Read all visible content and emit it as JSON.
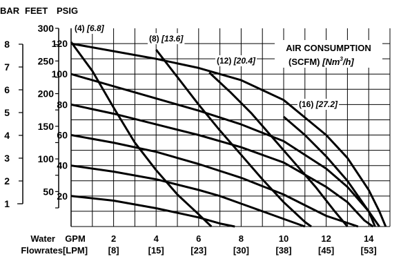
{
  "chart_data": {
    "type": "line",
    "headers": {
      "bar": "BAR",
      "feet": "FEET",
      "psig": "PSIG"
    },
    "legend_title_1": "AIR CONSUMPTION",
    "legend_title_2": "(SCFM) ",
    "legend_title_unit": "[Nm",
    "legend_title_sup": "3",
    "legend_title_end": "/h]",
    "psig_ticks": [
      "20",
      "40",
      "60",
      "80",
      "100",
      "120"
    ],
    "feet_ticks": [
      "50",
      "100",
      "150",
      "200",
      "250",
      "300"
    ],
    "bar_ticks": [
      "1",
      "2",
      "3",
      "4",
      "5",
      "6",
      "7",
      "8"
    ],
    "x_gpm_ticks": [
      "2",
      "4",
      "6",
      "8",
      "10",
      "12",
      "14"
    ],
    "x_lpm_ticks": [
      "[8]",
      "[15]",
      "[23]",
      "[30]",
      "[38]",
      "[45]",
      "[53]"
    ],
    "x_row1_label": "Water",
    "x_row1_unit": "GPM",
    "x_row2_label": "Flowrates",
    "x_row2_unit": "[LPM]",
    "xlim": [
      0,
      15
    ],
    "ylim": [
      0,
      130
    ],
    "grid": true,
    "air_curves": [
      {
        "scfm": "(4)",
        "nm3h": "[6.8]",
        "points": [
          [
            0,
            121
          ],
          [
            1,
            102
          ],
          [
            2,
            78
          ],
          [
            3,
            55
          ],
          [
            4,
            37
          ],
          [
            5,
            21
          ],
          [
            6,
            8
          ],
          [
            6.6,
            0
          ]
        ]
      },
      {
        "scfm": "(8)",
        "nm3h": "[13.6]",
        "points": [
          [
            4,
            116
          ],
          [
            5,
            98
          ],
          [
            6,
            80
          ],
          [
            7,
            63
          ],
          [
            8,
            47
          ],
          [
            9,
            31
          ],
          [
            10,
            16
          ],
          [
            11,
            3
          ],
          [
            11.3,
            0
          ]
        ]
      },
      {
        "scfm": "(12)",
        "nm3h": "[20.4]",
        "points": [
          [
            6.5,
            101
          ],
          [
            7.5,
            88
          ],
          [
            8.5,
            74
          ],
          [
            9.5,
            58
          ],
          [
            10.5,
            42
          ],
          [
            11.5,
            26
          ],
          [
            12.4,
            10
          ],
          [
            13,
            0
          ]
        ]
      },
      {
        "scfm": "(16)",
        "nm3h": "[27.2]",
        "points": [
          [
            10,
            72
          ],
          [
            11,
            60
          ],
          [
            12,
            46
          ],
          [
            13,
            30
          ],
          [
            13.8,
            14
          ],
          [
            14.5,
            0
          ]
        ]
      }
    ],
    "head_curves": [
      {
        "points": [
          [
            0,
            120
          ],
          [
            2,
            115
          ],
          [
            4,
            110
          ],
          [
            6,
            104
          ],
          [
            8,
            96
          ],
          [
            10,
            83
          ],
          [
            12,
            60
          ],
          [
            13,
            45
          ],
          [
            14,
            24
          ],
          [
            14.5,
            10
          ],
          [
            14.8,
            0
          ]
        ]
      },
      {
        "points": [
          [
            0,
            100
          ],
          [
            2,
            92
          ],
          [
            4,
            84
          ],
          [
            6,
            76
          ],
          [
            8,
            67
          ],
          [
            10,
            56
          ],
          [
            12,
            38
          ],
          [
            13,
            26
          ],
          [
            14,
            10
          ],
          [
            14.3,
            0
          ]
        ]
      },
      {
        "points": [
          [
            0,
            80
          ],
          [
            2,
            74
          ],
          [
            4,
            67
          ],
          [
            6,
            60
          ],
          [
            8,
            52
          ],
          [
            10,
            42
          ],
          [
            12,
            26
          ],
          [
            13,
            16
          ],
          [
            13.8,
            4
          ],
          [
            14.2,
            0
          ]
        ]
      },
      {
        "points": [
          [
            0,
            60
          ],
          [
            2,
            55
          ],
          [
            4,
            49
          ],
          [
            6,
            41
          ],
          [
            8,
            32
          ],
          [
            10,
            21
          ],
          [
            11,
            14
          ],
          [
            12,
            7
          ],
          [
            13.5,
            0
          ]
        ]
      },
      {
        "points": [
          [
            0,
            40
          ],
          [
            2,
            36
          ],
          [
            4,
            31
          ],
          [
            6,
            24
          ],
          [
            7,
            20
          ],
          [
            8,
            15
          ],
          [
            9,
            10
          ],
          [
            10,
            5
          ],
          [
            11,
            0
          ]
        ]
      },
      {
        "points": [
          [
            0,
            20
          ],
          [
            2,
            17
          ],
          [
            4,
            12
          ],
          [
            6,
            6
          ],
          [
            7,
            2
          ],
          [
            7.7,
            0
          ]
        ]
      }
    ]
  }
}
